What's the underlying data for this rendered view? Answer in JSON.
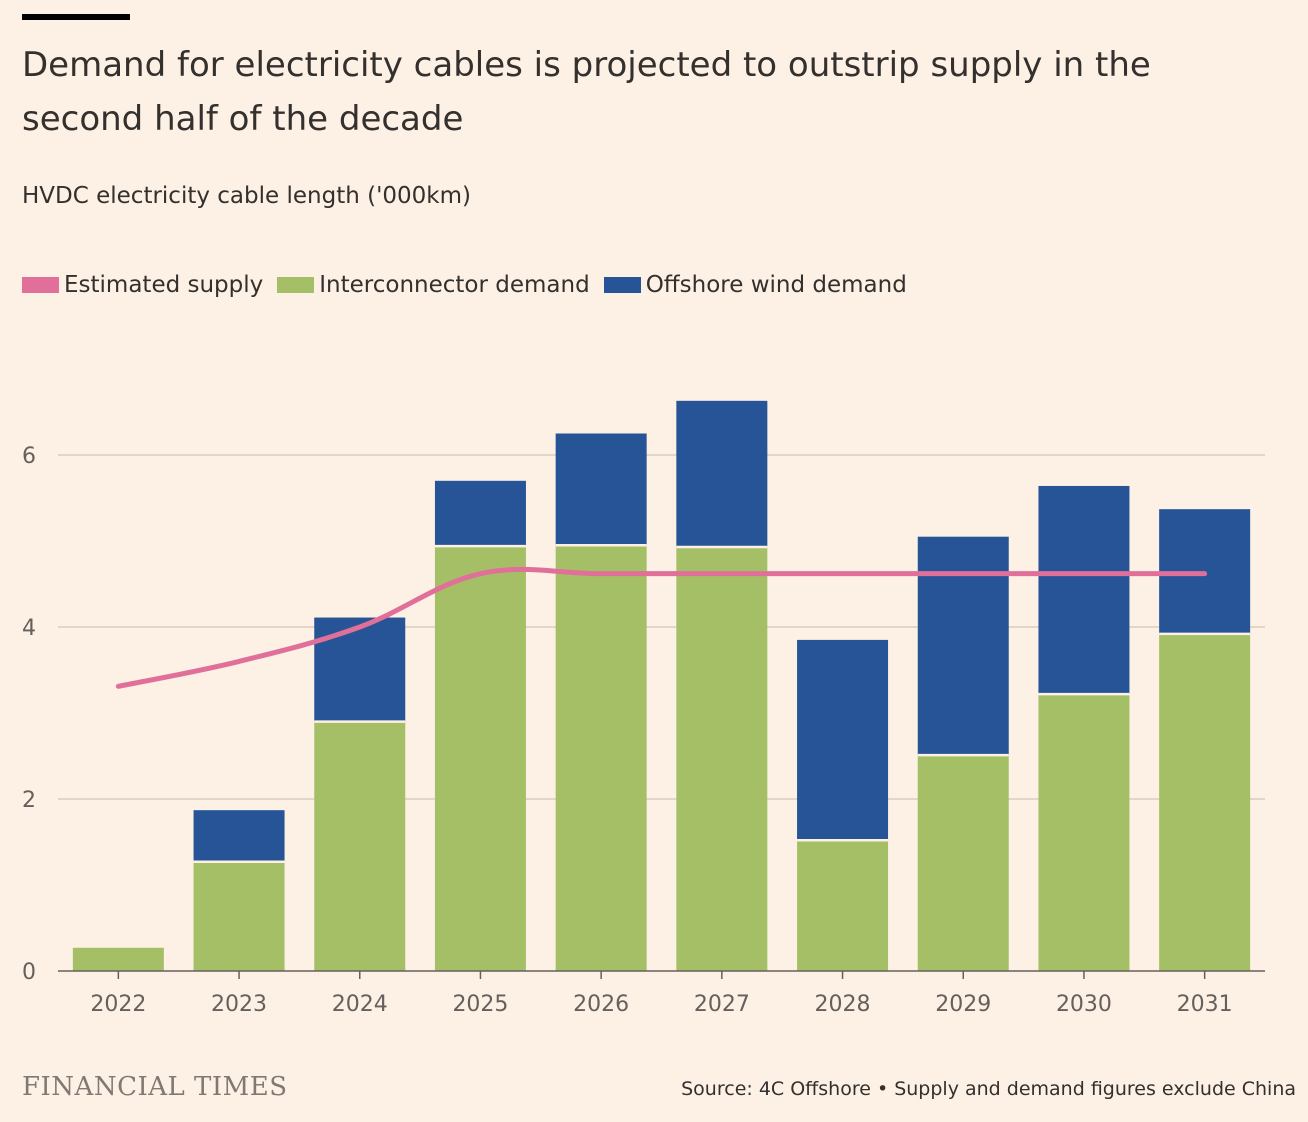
{
  "title": "Demand for electricity cables is projected to outstrip supply in the second half of the decade",
  "subtitle": "HVDC electricity cable length ('000km)",
  "legend": [
    {
      "label": "Estimated supply",
      "color": "#e0709a"
    },
    {
      "label": "Interconnector demand",
      "color": "#a5bf66"
    },
    {
      "label": "Offshore wind demand",
      "color": "#265496"
    }
  ],
  "brand": "FINANCIAL TIMES",
  "source": "Source: 4C Offshore • Supply and demand figures exclude China",
  "chart_data": {
    "type": "bar",
    "stacked": true,
    "categories": [
      "2022",
      "2023",
      "2024",
      "2025",
      "2026",
      "2027",
      "2028",
      "2029",
      "2030",
      "2031"
    ],
    "series": [
      {
        "name": "Interconnector demand",
        "color": "#a5bf66",
        "values": [
          0.27,
          1.27,
          2.9,
          4.94,
          4.95,
          4.93,
          1.52,
          2.51,
          3.22,
          3.92
        ]
      },
      {
        "name": "Offshore wind demand",
        "color": "#265496",
        "values": [
          0,
          0.6,
          1.21,
          0.76,
          1.3,
          1.7,
          2.33,
          2.54,
          2.42,
          1.45
        ]
      }
    ],
    "line_series": {
      "name": "Estimated supply",
      "color": "#e0709a",
      "values": [
        3.31,
        3.6,
        4.0,
        4.62,
        4.62,
        4.62,
        4.62,
        4.62,
        4.62,
        4.62
      ]
    },
    "y_ticks": [
      "0",
      "2",
      "4",
      "6"
    ],
    "ylim": [
      0,
      7
    ],
    "grid": true,
    "legend_position": "top-left"
  }
}
